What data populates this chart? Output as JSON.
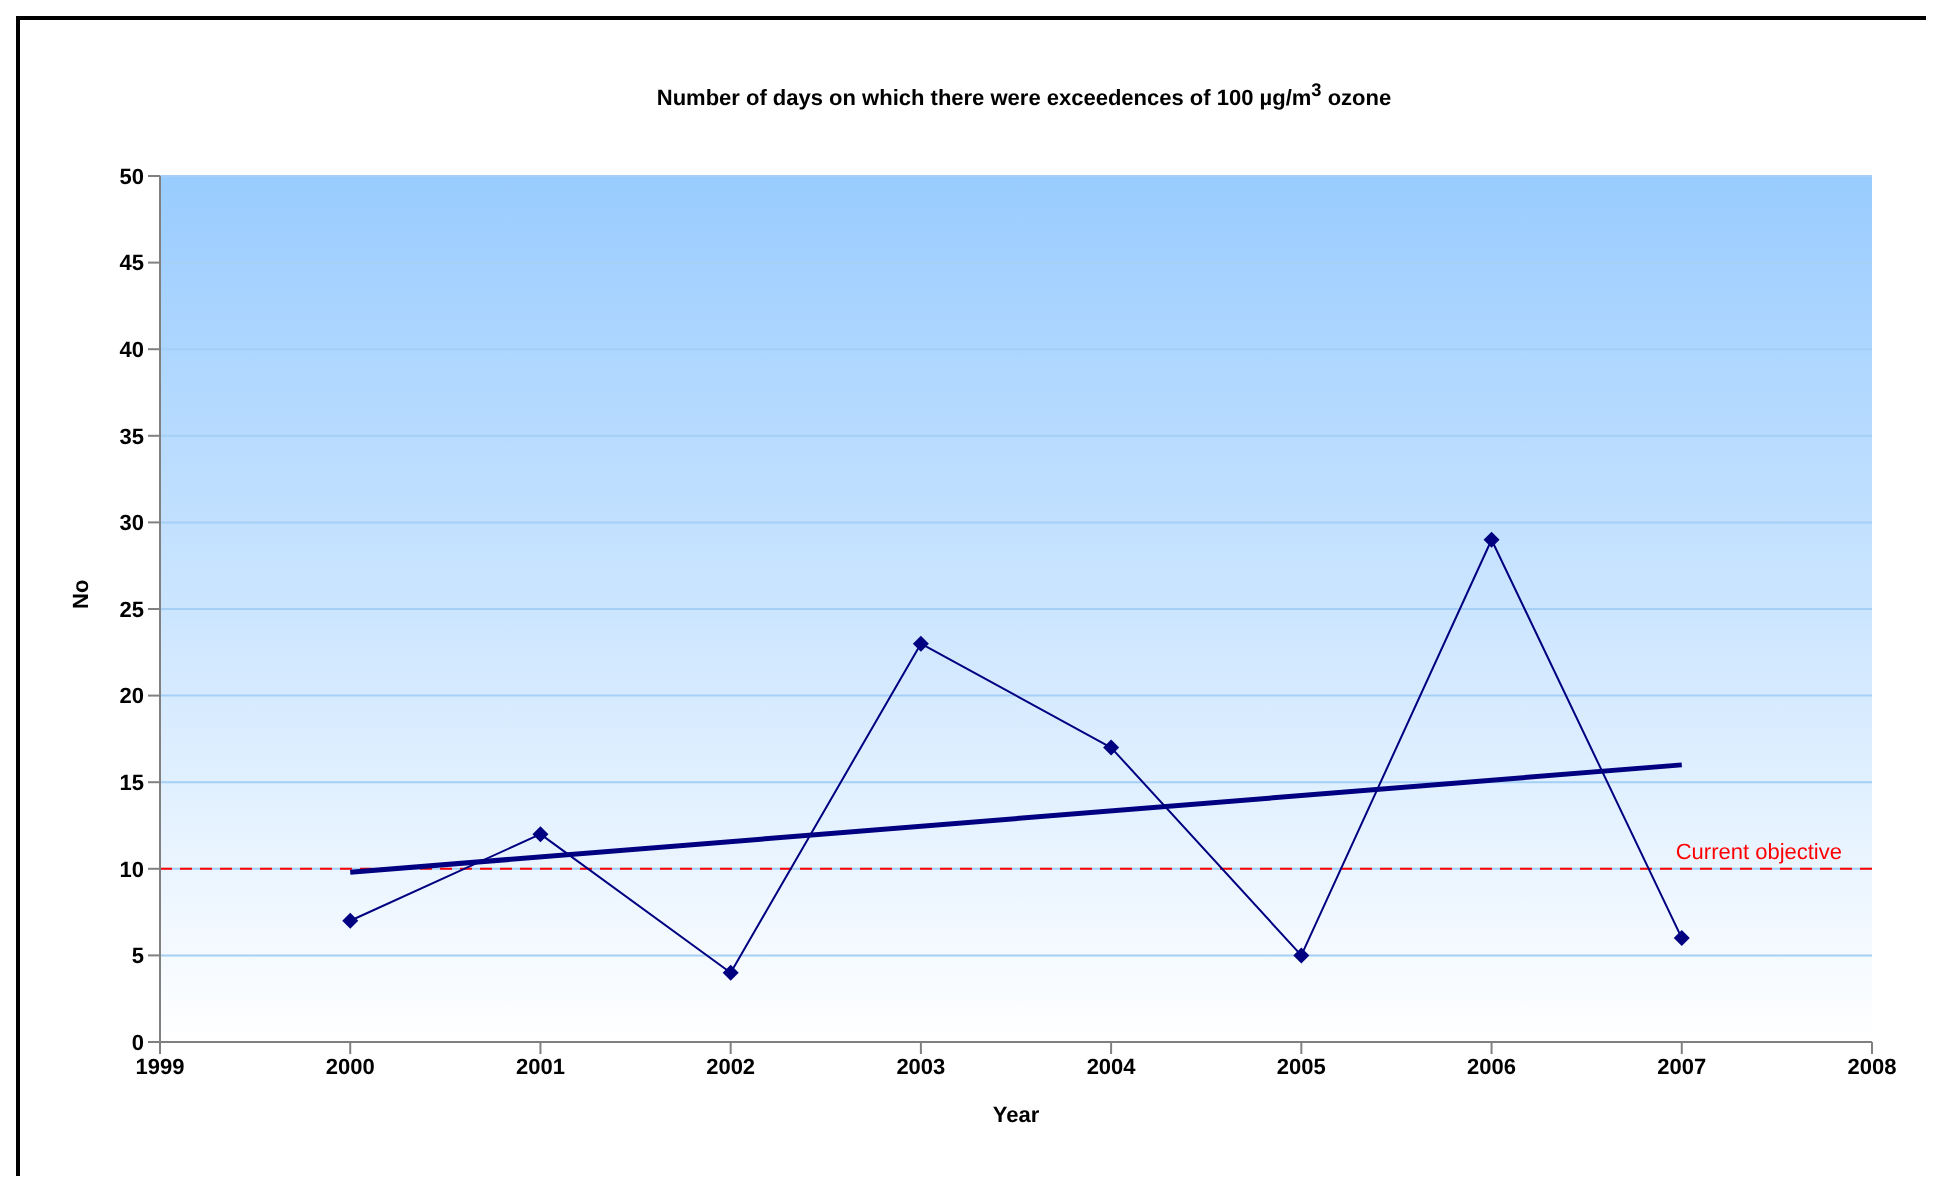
{
  "chart_data": {
    "type": "line",
    "title": "Number of days on which there were exceedences of 100 µg/m$^{3}$ ozone",
    "xlabel": "Year",
    "ylabel": "No",
    "x": [
      2000,
      2001,
      2002,
      2003,
      2004,
      2005,
      2006,
      2007
    ],
    "series": [
      {
        "color": "#000080",
        "values": [
          7,
          12,
          4,
          23,
          17,
          5,
          29,
          6
        ],
        "marker": "diamond"
      },
      {
        "type": "line",
        "color": "#000080",
        "x": [
          2000,
          2007
        ],
        "values": [
          9.8,
          16
        ],
        "marker": "none"
      }
    ],
    "xlim": [
      1999,
      2008
    ],
    "xticks": [
      1999,
      2000,
      2001,
      2002,
      2003,
      2004,
      2005,
      2006,
      2007,
      2008
    ],
    "ylim": [
      0,
      50
    ],
    "yticks": [
      0,
      5,
      10,
      15,
      20,
      25,
      30,
      35,
      40,
      45,
      50
    ],
    "grid": "y",
    "legend": false,
    "ref_lines": [
      {
        "axis": "y",
        "value": 10,
        "label": "Current objective",
        "color": "#ff0000",
        "line_style": "dashed"
      }
    ]
  }
}
